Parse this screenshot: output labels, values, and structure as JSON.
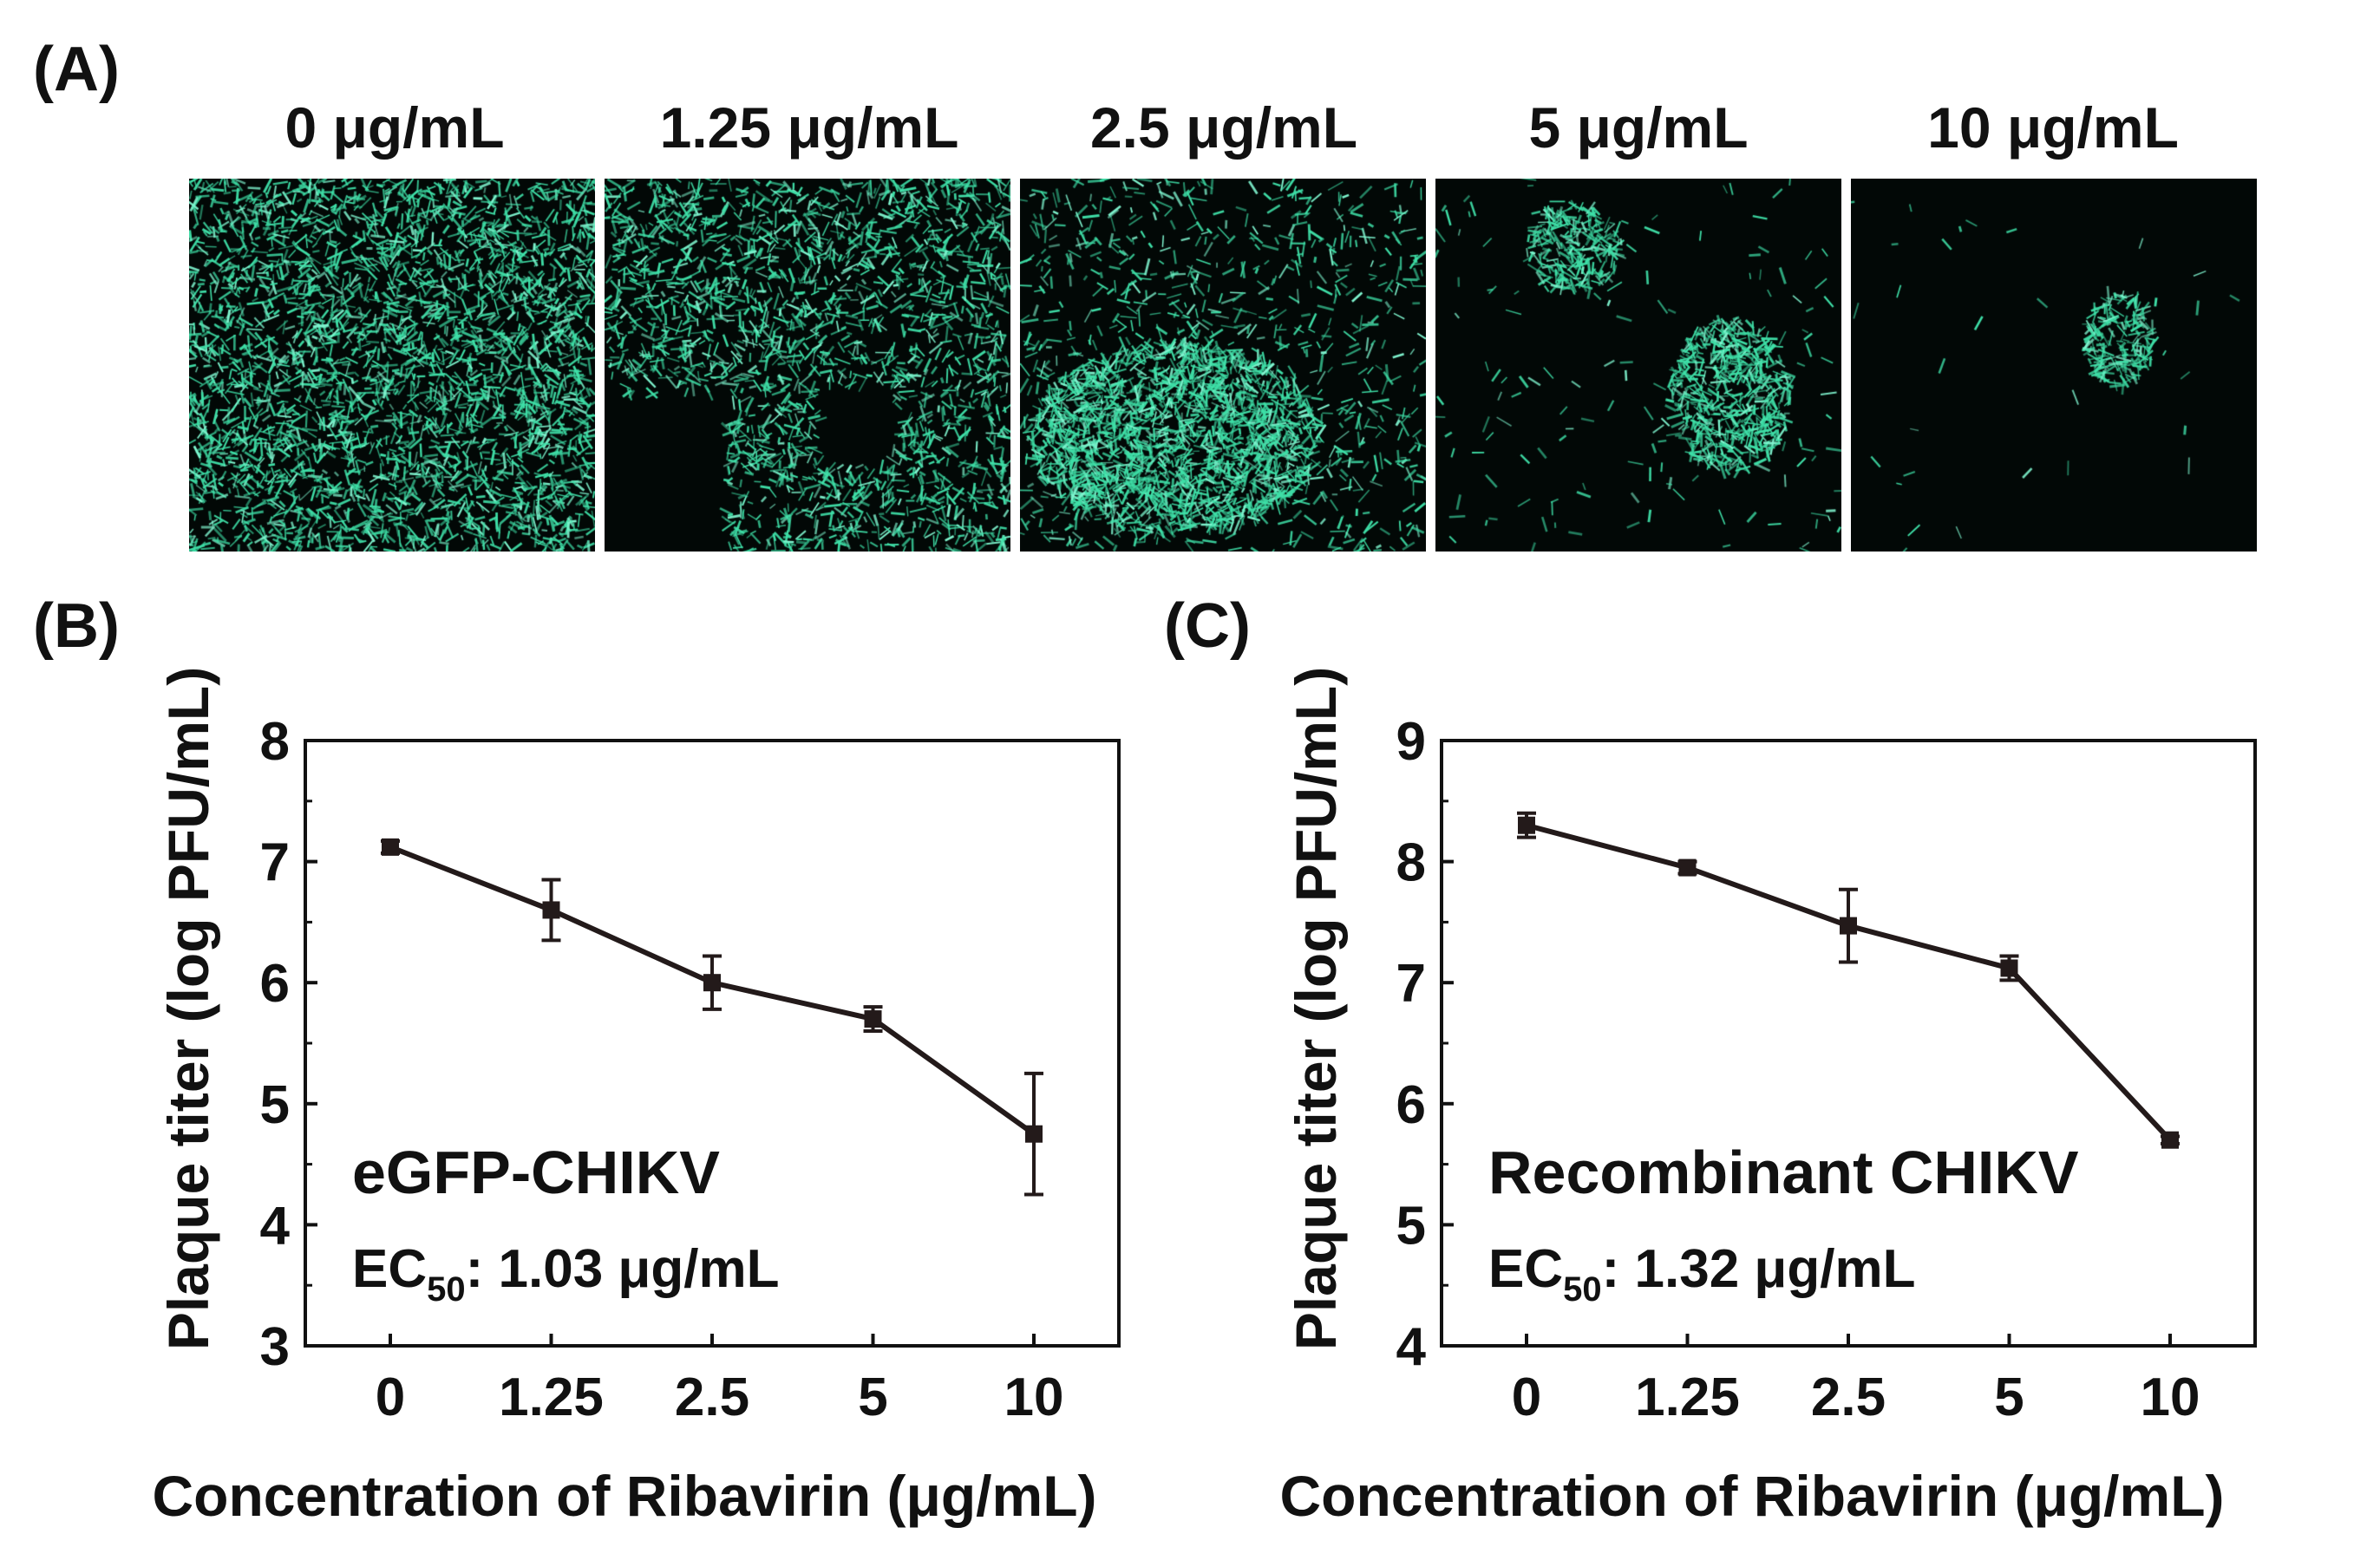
{
  "panels": {
    "a_label": "(A)",
    "b_label": "(B)",
    "c_label": "(C)"
  },
  "micrographs": [
    {
      "label": "0 μg/mL",
      "density": 1.0,
      "clusters": 0
    },
    {
      "label": "1.25 μg/mL",
      "density": 0.75,
      "clusters": 0
    },
    {
      "label": "2.5 μg/mL",
      "density": 0.3,
      "clusters": 1
    },
    {
      "label": "5 μg/mL",
      "density": 0.05,
      "clusters": 2
    },
    {
      "label": "10 μg/mL",
      "density": 0.01,
      "clusters": 1
    }
  ],
  "colors": {
    "cell": "#3fe0a8",
    "cell_bright": "#7ff5cf",
    "background": "#020806",
    "line": "#231a1a"
  },
  "chart_data": [
    {
      "type": "line",
      "title": "",
      "xlabel": "Concentration of Ribavirin (μg/mL)",
      "ylabel": "Plaque titer (log PFU/mL)",
      "categories": [
        "0",
        "1.25",
        "2.5",
        "5",
        "10"
      ],
      "ylim": [
        3,
        8
      ],
      "yticks": [
        "3",
        "4",
        "5",
        "6",
        "7",
        "8"
      ],
      "series": [
        {
          "values": [
            7.12,
            6.6,
            6.0,
            5.7,
            4.75
          ],
          "error": [
            0.05,
            0.25,
            0.22,
            0.1,
            0.5
          ]
        }
      ],
      "annotation_title": "eGFP-CHIKV",
      "annotation_ec_prefix": "EC",
      "annotation_ec_sub": "50",
      "annotation_ec_value": ": 1.03 μg/mL"
    },
    {
      "type": "line",
      "title": "",
      "xlabel": "Concentration of Ribavirin (μg/mL)",
      "ylabel": "Plaque titer (log PFU/mL)",
      "categories": [
        "0",
        "1.25",
        "2.5",
        "5",
        "10"
      ],
      "ylim": [
        4,
        9
      ],
      "yticks": [
        "4",
        "5",
        "6",
        "7",
        "8",
        "9"
      ],
      "series": [
        {
          "values": [
            8.3,
            7.95,
            7.47,
            7.12,
            5.7
          ],
          "error": [
            0.1,
            0.05,
            0.3,
            0.1,
            0.03
          ]
        }
      ],
      "annotation_title": "Recombinant CHIKV",
      "annotation_ec_prefix": "EC",
      "annotation_ec_sub": "50",
      "annotation_ec_value": ": 1.32 μg/mL"
    }
  ]
}
